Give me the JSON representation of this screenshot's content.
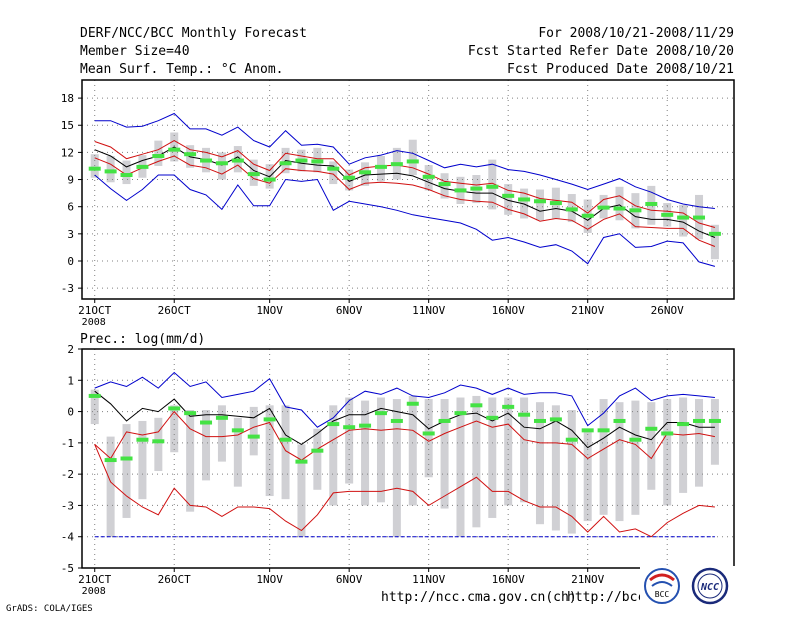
{
  "header": {
    "title": "DERF/NCC/BCC Monthly Forecast",
    "member_size": "Member Size=40",
    "variable": "Mean Surf. Temp.: °C Anom.",
    "period": "For 2008/10/21-2008/11/29",
    "fcst_started": "Fcst Started Refer Date 2008/10/20",
    "fcst_produced": "Fcst Produced Date 2008/10/21"
  },
  "footer": {
    "grads": "GrADS: COLA/IGES",
    "url1": "http://ncc.cma.gov.cn(ch)",
    "url2": "http://bcc.",
    "logo1_text": "BCC",
    "logo2_text": "NCC"
  },
  "colors": {
    "box": "#d0d0d4",
    "median": "#44e244",
    "mean": "#000000",
    "inner_band": "#d01010",
    "outer_band": "#0000cc",
    "grid": "#808080"
  },
  "chart_data": [
    {
      "type": "line",
      "title": "Mean Surf. Temp.: °C Anom.",
      "x": [
        1,
        2,
        3,
        4,
        5,
        6,
        7,
        8,
        9,
        10,
        11,
        12,
        13,
        14,
        15,
        16,
        17,
        18,
        19,
        20,
        21,
        22,
        23,
        24,
        25,
        26,
        27,
        28,
        29,
        30,
        31,
        32,
        33,
        34,
        35,
        36,
        37,
        38,
        39,
        40
      ],
      "x_ticks": [
        {
          "pos": 1,
          "label": "21OCT",
          "sub": "2008"
        },
        {
          "pos": 6,
          "label": "26OCT",
          "sub": ""
        },
        {
          "pos": 12,
          "label": "1NOV",
          "sub": ""
        },
        {
          "pos": 17,
          "label": "6NOV",
          "sub": ""
        },
        {
          "pos": 22,
          "label": "11NOV",
          "sub": ""
        },
        {
          "pos": 27,
          "label": "16NOV",
          "sub": ""
        },
        {
          "pos": 32,
          "label": "21NOV",
          "sub": ""
        },
        {
          "pos": 37,
          "label": "26NOV",
          "sub": ""
        }
      ],
      "xlim": [
        0.2,
        41.2
      ],
      "ylim": [
        -4.2,
        20
      ],
      "y_ticks": [
        -3,
        0,
        3,
        6,
        9,
        12,
        15,
        18
      ],
      "grid": true,
      "series": [
        {
          "name": "outer_max",
          "values": [
            15.5,
            15.5,
            14.8,
            14.9,
            15.5,
            16.3,
            14.6,
            14.6,
            13.9,
            14.8,
            13.3,
            12.6,
            14.4,
            12.8,
            12.9,
            12.6,
            10.7,
            11.4,
            11.7,
            12.2,
            11.9,
            11.1,
            10.3,
            10.7,
            10.4,
            10.7,
            10.1,
            9.9,
            9.5,
            9.0,
            8.5,
            7.9,
            8.5,
            9.1,
            8.2,
            7.6,
            6.8,
            6.3,
            6.0,
            5.8
          ]
        },
        {
          "name": "upper",
          "values": [
            13.2,
            12.6,
            11.3,
            11.8,
            12.3,
            13.3,
            12.3,
            12.0,
            11.5,
            12.2,
            10.7,
            10.0,
            11.9,
            11.6,
            11.3,
            11.3,
            9.5,
            10.3,
            10.5,
            10.6,
            10.3,
            9.6,
            8.8,
            8.6,
            8.4,
            8.6,
            7.8,
            7.5,
            6.9,
            6.7,
            6.5,
            5.3,
            6.8,
            7.2,
            6.1,
            5.6,
            5.5,
            5.3,
            4.2,
            3.7
          ]
        },
        {
          "name": "mean",
          "values": [
            12.3,
            11.6,
            10.4,
            11.1,
            11.6,
            12.6,
            11.5,
            11.2,
            10.6,
            11.5,
            10.0,
            9.3,
            11.1,
            10.8,
            10.6,
            10.5,
            8.8,
            9.5,
            9.6,
            9.7,
            9.4,
            8.7,
            8.0,
            7.7,
            7.5,
            7.5,
            6.7,
            6.3,
            5.5,
            5.8,
            5.5,
            4.5,
            5.8,
            6.2,
            4.9,
            4.6,
            4.6,
            4.3,
            3.3,
            2.6
          ]
        },
        {
          "name": "lower",
          "values": [
            11.4,
            10.7,
            9.5,
            10.3,
            11.0,
            11.6,
            10.6,
            10.3,
            9.6,
            10.6,
            9.1,
            8.6,
            10.2,
            10.0,
            9.9,
            9.6,
            7.9,
            8.6,
            8.7,
            8.6,
            8.4,
            7.9,
            7.2,
            6.8,
            6.6,
            6.5,
            5.7,
            5.2,
            4.4,
            4.7,
            4.5,
            3.5,
            4.6,
            5.2,
            3.8,
            3.7,
            3.6,
            3.6,
            2.3,
            1.6
          ]
        },
        {
          "name": "outer_min",
          "values": [
            9.5,
            8.0,
            6.7,
            7.9,
            9.5,
            9.5,
            7.9,
            7.3,
            5.7,
            8.4,
            6.1,
            6.1,
            9.0,
            8.8,
            9.0,
            5.6,
            6.6,
            6.3,
            6.0,
            5.6,
            5.1,
            4.8,
            4.5,
            4.2,
            3.5,
            2.3,
            2.6,
            2.1,
            1.5,
            1.8,
            1.1,
            -0.3,
            2.6,
            3.0,
            1.5,
            1.6,
            2.2,
            2.0,
            -0.1,
            -0.6
          ]
        }
      ],
      "median": [
        10.2,
        9.9,
        9.5,
        10.4,
        11.6,
        12.3,
        11.8,
        11.1,
        10.8,
        11.1,
        9.6,
        9.0,
        10.8,
        11.1,
        11.0,
        10.2,
        9.2,
        9.8,
        10.4,
        10.7,
        11.0,
        9.3,
        8.5,
        7.8,
        8.0,
        8.2,
        7.2,
        6.8,
        6.6,
        6.4,
        5.7,
        5.0,
        5.9,
        5.8,
        5.6,
        6.3,
        5.1,
        4.8,
        4.8,
        3.0
      ],
      "boxes": [
        [
          9.2,
          11.8
        ],
        [
          8.7,
          11.6
        ],
        [
          8.5,
          11.1
        ],
        [
          9.2,
          11.7
        ],
        [
          10.5,
          13.3
        ],
        [
          11.0,
          14.2
        ],
        [
          10.3,
          12.8
        ],
        [
          9.8,
          12.5
        ],
        [
          9.0,
          12.0
        ],
        [
          9.8,
          12.7
        ],
        [
          8.3,
          11.2
        ],
        [
          8.0,
          10.7
        ],
        [
          9.7,
          12.5
        ],
        [
          9.9,
          12.3
        ],
        [
          9.8,
          12.5
        ],
        [
          8.5,
          11.0
        ],
        [
          7.8,
          10.1
        ],
        [
          8.3,
          10.9
        ],
        [
          8.8,
          11.6
        ],
        [
          9.0,
          12.5
        ],
        [
          9.5,
          13.4
        ],
        [
          7.8,
          10.6
        ],
        [
          6.9,
          9.7
        ],
        [
          6.3,
          9.3
        ],
        [
          6.4,
          9.5
        ],
        [
          5.7,
          11.2
        ],
        [
          5.1,
          8.5
        ],
        [
          4.7,
          8.0
        ],
        [
          4.5,
          7.9
        ],
        [
          4.7,
          8.1
        ],
        [
          4.3,
          7.4
        ],
        [
          3.1,
          6.8
        ],
        [
          4.7,
          7.3
        ],
        [
          4.5,
          8.2
        ],
        [
          3.6,
          7.5
        ],
        [
          4.0,
          8.3
        ],
        [
          3.8,
          6.4
        ],
        [
          2.7,
          6.2
        ],
        [
          2.4,
          7.3
        ],
        [
          0.2,
          4.0
        ]
      ]
    },
    {
      "type": "line",
      "title": "Prec.: log(mm/d)",
      "x": [
        1,
        2,
        3,
        4,
        5,
        6,
        7,
        8,
        9,
        10,
        11,
        12,
        13,
        14,
        15,
        16,
        17,
        18,
        19,
        20,
        21,
        22,
        23,
        24,
        25,
        26,
        27,
        28,
        29,
        30,
        31,
        32,
        33,
        34,
        35,
        36,
        37,
        38,
        39,
        40
      ],
      "x_ticks": [
        {
          "pos": 1,
          "label": "21OCT",
          "sub": "2008"
        },
        {
          "pos": 6,
          "label": "26OCT",
          "sub": ""
        },
        {
          "pos": 12,
          "label": "1NOV",
          "sub": ""
        },
        {
          "pos": 17,
          "label": "6NOV",
          "sub": ""
        },
        {
          "pos": 22,
          "label": "11NOV",
          "sub": ""
        },
        {
          "pos": 27,
          "label": "16NOV",
          "sub": ""
        },
        {
          "pos": 32,
          "label": "21NOV",
          "sub": ""
        },
        {
          "pos": 37,
          "label": "26NOV",
          "sub": ""
        }
      ],
      "xlim": [
        0.2,
        41.2
      ],
      "ylim": [
        -5,
        2
      ],
      "y_ticks": [
        -5,
        -4,
        -3,
        -2,
        -1,
        0,
        1,
        2
      ],
      "grid": true,
      "reference_line": -4,
      "series": [
        {
          "name": "outer_max",
          "values": [
            0.75,
            0.95,
            0.8,
            1.1,
            0.75,
            1.25,
            0.8,
            0.95,
            0.45,
            0.55,
            0.65,
            1.05,
            0.15,
            0.05,
            -0.5,
            -0.2,
            0.35,
            0.65,
            0.55,
            0.75,
            0.5,
            0.45,
            0.6,
            0.85,
            0.75,
            0.55,
            0.75,
            0.55,
            0.6,
            0.6,
            0.5,
            -0.45,
            -0.05,
            0.5,
            0.75,
            0.35,
            0.5,
            0.55,
            0.5,
            0.45
          ]
        },
        {
          "name": "mean",
          "values": [
            0.65,
            0.25,
            -0.3,
            0.1,
            0.0,
            0.4,
            -0.15,
            -0.1,
            -0.1,
            -0.15,
            -0.2,
            0.1,
            -0.75,
            -1.05,
            -0.7,
            -0.3,
            -0.1,
            -0.1,
            0.1,
            0.0,
            -0.1,
            -0.55,
            -0.3,
            -0.1,
            -0.05,
            -0.3,
            -0.05,
            -0.5,
            -0.55,
            -0.3,
            -0.6,
            -1.15,
            -0.85,
            -0.5,
            -0.75,
            -0.9,
            -0.35,
            -0.35,
            -0.5,
            -0.5
          ]
        },
        {
          "name": "upper",
          "values": [
            -1.05,
            -1.5,
            -0.65,
            -0.75,
            -0.65,
            0.0,
            -0.55,
            -0.8,
            -0.8,
            -0.75,
            -0.5,
            -0.35,
            -1.25,
            -1.55,
            -1.2,
            -0.9,
            -0.6,
            -0.55,
            -0.6,
            -0.55,
            -0.6,
            -0.95,
            -0.7,
            -0.5,
            -0.3,
            -0.5,
            -0.4,
            -0.9,
            -1.0,
            -1.0,
            -1.05,
            -1.5,
            -1.2,
            -0.9,
            -1.05,
            -1.5,
            -0.7,
            -0.75,
            -0.7,
            -0.8
          ]
        },
        {
          "name": "lower",
          "values": [
            -1.05,
            -2.25,
            -2.7,
            -3.05,
            -3.3,
            -2.45,
            -3.0,
            -3.05,
            -3.35,
            -3.05,
            -3.05,
            -3.1,
            -3.5,
            -3.8,
            -3.3,
            -2.6,
            -2.55,
            -2.55,
            -2.55,
            -2.45,
            -2.55,
            -3.0,
            -2.7,
            -2.4,
            -2.1,
            -2.55,
            -2.55,
            -2.85,
            -3.05,
            -3.05,
            -3.35,
            -3.85,
            -3.35,
            -3.85,
            -3.75,
            -4.0,
            -3.55,
            -3.25,
            -3.0,
            -3.05
          ]
        }
      ],
      "median": [
        0.5,
        -1.55,
        -1.5,
        -0.9,
        -0.95,
        0.1,
        -0.05,
        -0.35,
        -0.2,
        -0.6,
        -0.8,
        -0.25,
        -0.9,
        -1.6,
        -1.25,
        -0.4,
        -0.5,
        -0.45,
        -0.05,
        -0.3,
        0.25,
        -0.7,
        -0.3,
        -0.05,
        0.2,
        -0.2,
        0.15,
        -0.1,
        -0.3,
        -0.25,
        -0.9,
        -0.6,
        -0.6,
        -0.3,
        -0.9,
        -0.55,
        -0.7,
        -0.4,
        -0.3,
        -0.3
      ],
      "boxes": [
        [
          -0.4,
          0.7
        ],
        [
          -4.0,
          -0.8
        ],
        [
          -3.4,
          -0.4
        ],
        [
          -2.8,
          -0.3
        ],
        [
          -1.9,
          -0.2
        ],
        [
          -1.3,
          0.2
        ],
        [
          -3.2,
          0.05
        ],
        [
          -2.2,
          0.05
        ],
        [
          -1.6,
          0.2
        ],
        [
          -2.4,
          -0.2
        ],
        [
          -1.4,
          0.15
        ],
        [
          -2.7,
          0.2
        ],
        [
          -2.8,
          0.2
        ],
        [
          -4.0,
          -1.05
        ],
        [
          -2.5,
          -0.55
        ],
        [
          -3.0,
          0.2
        ],
        [
          -2.3,
          0.45
        ],
        [
          -3.0,
          0.35
        ],
        [
          -2.9,
          0.45
        ],
        [
          -4.0,
          0.4
        ],
        [
          -3.0,
          0.5
        ],
        [
          -2.1,
          0.4
        ],
        [
          -3.1,
          0.4
        ],
        [
          -4.0,
          0.45
        ],
        [
          -3.7,
          0.5
        ],
        [
          -3.4,
          0.45
        ],
        [
          -3.0,
          0.45
        ],
        [
          -2.9,
          0.45
        ],
        [
          -3.6,
          0.3
        ],
        [
          -3.8,
          0.2
        ],
        [
          -3.9,
          0.05
        ],
        [
          -3.5,
          -0.55
        ],
        [
          -3.3,
          0.4
        ],
        [
          -3.5,
          0.3
        ],
        [
          -3.3,
          0.35
        ],
        [
          -2.5,
          0.3
        ],
        [
          -3.0,
          0.4
        ],
        [
          -2.6,
          0.45
        ],
        [
          -2.4,
          0.4
        ],
        [
          -1.7,
          0.4
        ]
      ]
    }
  ]
}
